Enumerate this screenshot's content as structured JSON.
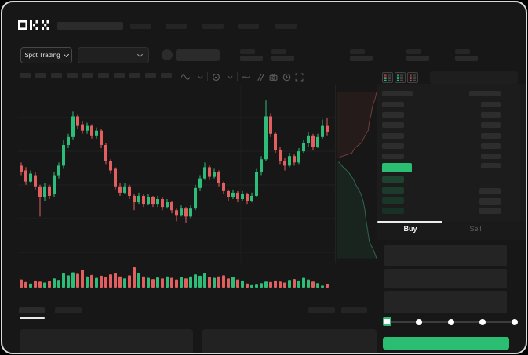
{
  "brand": {
    "name": "OKX"
  },
  "header": {
    "nav_placeholder_count": 5,
    "search_placeholder": true
  },
  "market_selector": {
    "label": "Spot Trading"
  },
  "ticker_stats": {
    "placeholder_pair_count": 5
  },
  "toolbar": {
    "interval_placeholder_count": 10,
    "icons": [
      "wave-indicator-icon",
      "chevron-down-icon",
      "indicator-circle-icon",
      "chevron-down-icon",
      "trendline-icon",
      "compare-hatch-icon",
      "camera-icon",
      "history-clock-icon",
      "fullscreen-icon"
    ]
  },
  "order_book": {
    "view_icons": [
      "book-combined-icon",
      "book-bids-icon",
      "book-asks-icon"
    ],
    "ask_rows": 7,
    "bid_rows": 4,
    "right_rows": 8,
    "right_lower_rows": 3,
    "bid_row_colors": [
      "#1e4230",
      "#1b3c2c",
      "#193628",
      "#173124"
    ]
  },
  "order_form": {
    "buy_label": "Buy",
    "sell_label": "Sell",
    "active_tab": "Buy",
    "slider_stops": [
      0,
      25,
      50,
      75,
      100
    ],
    "slider_value": 0,
    "submit_label": ""
  },
  "colors": {
    "bg": "#171717",
    "panel": "#1c1c1c",
    "skeleton": "#2b2b2b",
    "up": "#2ebd78",
    "down": "#e35f5f",
    "accent": "#2bbd72",
    "last_price": "#2bbd72",
    "gridline": "#212121"
  },
  "chart_data": {
    "type": "candlestick",
    "note": "values on relative 0-100 price scale, no axis labels visible",
    "candles": [
      [
        54,
        56,
        48,
        50
      ],
      [
        51,
        53,
        42,
        44
      ],
      [
        44,
        51,
        43,
        49
      ],
      [
        48,
        50,
        39,
        41
      ],
      [
        41,
        42,
        22,
        34
      ],
      [
        34,
        43,
        32,
        41
      ],
      [
        41,
        42,
        33,
        35
      ],
      [
        36,
        50,
        34,
        48
      ],
      [
        48,
        56,
        46,
        54
      ],
      [
        54,
        70,
        52,
        67
      ],
      [
        67,
        74,
        65,
        72
      ],
      [
        72,
        88,
        70,
        85
      ],
      [
        85,
        86,
        77,
        79
      ],
      [
        80,
        82,
        74,
        76
      ],
      [
        76,
        81,
        74,
        79
      ],
      [
        79,
        80,
        71,
        73
      ],
      [
        73,
        78,
        71,
        76
      ],
      [
        76,
        77,
        65,
        67
      ],
      [
        67,
        68,
        55,
        57
      ],
      [
        57,
        58,
        49,
        51
      ],
      [
        52,
        53,
        39,
        41
      ],
      [
        41,
        43,
        35,
        37
      ],
      [
        37,
        43,
        36,
        41
      ],
      [
        41,
        42,
        33,
        35
      ],
      [
        35,
        36,
        26,
        31
      ],
      [
        31,
        37,
        30,
        35
      ],
      [
        35,
        36,
        28,
        30
      ],
      [
        30,
        36,
        29,
        34
      ],
      [
        34,
        35,
        28,
        30
      ],
      [
        30,
        35,
        28,
        33
      ],
      [
        33,
        34,
        26,
        28
      ],
      [
        28,
        33,
        27,
        31
      ],
      [
        31,
        32,
        24,
        26
      ],
      [
        26,
        27,
        19,
        23
      ],
      [
        23,
        29,
        22,
        27
      ],
      [
        27,
        28,
        18,
        22
      ],
      [
        22,
        29,
        21,
        27
      ],
      [
        27,
        42,
        26,
        40
      ],
      [
        40,
        48,
        38,
        46
      ],
      [
        46,
        56,
        45,
        53
      ],
      [
        53,
        54,
        45,
        47
      ],
      [
        47,
        52,
        46,
        50
      ],
      [
        50,
        51,
        41,
        43
      ],
      [
        43,
        44,
        36,
        38
      ],
      [
        38,
        39,
        32,
        34
      ],
      [
        34,
        39,
        33,
        37
      ],
      [
        37,
        38,
        31,
        33
      ],
      [
        33,
        38,
        32,
        36
      ],
      [
        36,
        37,
        30,
        32
      ],
      [
        32,
        37,
        31,
        35
      ],
      [
        35,
        52,
        34,
        50
      ],
      [
        50,
        60,
        48,
        58
      ],
      [
        58,
        95,
        57,
        85
      ],
      [
        85,
        87,
        72,
        74
      ],
      [
        74,
        75,
        62,
        64
      ],
      [
        64,
        66,
        55,
        57
      ],
      [
        57,
        59,
        51,
        54
      ],
      [
        54,
        62,
        53,
        60
      ],
      [
        60,
        61,
        54,
        56
      ],
      [
        56,
        65,
        55,
        63
      ],
      [
        63,
        70,
        62,
        68
      ],
      [
        68,
        75,
        66,
        73
      ],
      [
        73,
        74,
        64,
        66
      ],
      [
        66,
        74,
        65,
        72
      ],
      [
        72,
        83,
        71,
        79
      ],
      [
        79,
        84,
        73,
        75
      ]
    ],
    "volumes": [
      40,
      28,
      20,
      35,
      30,
      25,
      33,
      45,
      38,
      70,
      60,
      75,
      68,
      88,
      55,
      62,
      48,
      58,
      52,
      65,
      70,
      55,
      45,
      60,
      100,
      72,
      55,
      48,
      42,
      50,
      45,
      55,
      48,
      40,
      52,
      45,
      55,
      65,
      58,
      70,
      52,
      48,
      55,
      60,
      45,
      52,
      40,
      35,
      20,
      12,
      15,
      22,
      30,
      28,
      35,
      30,
      25,
      38,
      42,
      35,
      48,
      40,
      30,
      22,
      10,
      18
    ],
    "depth": {
      "asks": [
        [
          1.0,
          0.03
        ],
        [
          0.96,
          0.07
        ],
        [
          0.9,
          0.11
        ],
        [
          0.86,
          0.16
        ],
        [
          0.82,
          0.2
        ],
        [
          0.79,
          0.25
        ],
        [
          0.71,
          0.28
        ],
        [
          0.63,
          0.32
        ],
        [
          0.46,
          0.35
        ],
        [
          0.38,
          0.38
        ],
        [
          0.12,
          0.4
        ],
        [
          0.05,
          0.41
        ]
      ],
      "bids": [
        [
          0.05,
          0.43
        ],
        [
          0.16,
          0.46
        ],
        [
          0.3,
          0.49
        ],
        [
          0.42,
          0.53
        ],
        [
          0.5,
          0.57
        ],
        [
          0.6,
          0.61
        ],
        [
          0.67,
          0.66
        ],
        [
          0.71,
          0.71
        ],
        [
          0.74,
          0.77
        ],
        [
          0.78,
          0.83
        ],
        [
          0.82,
          0.89
        ],
        [
          0.93,
          0.94
        ],
        [
          1.0,
          0.985
        ]
      ]
    }
  }
}
